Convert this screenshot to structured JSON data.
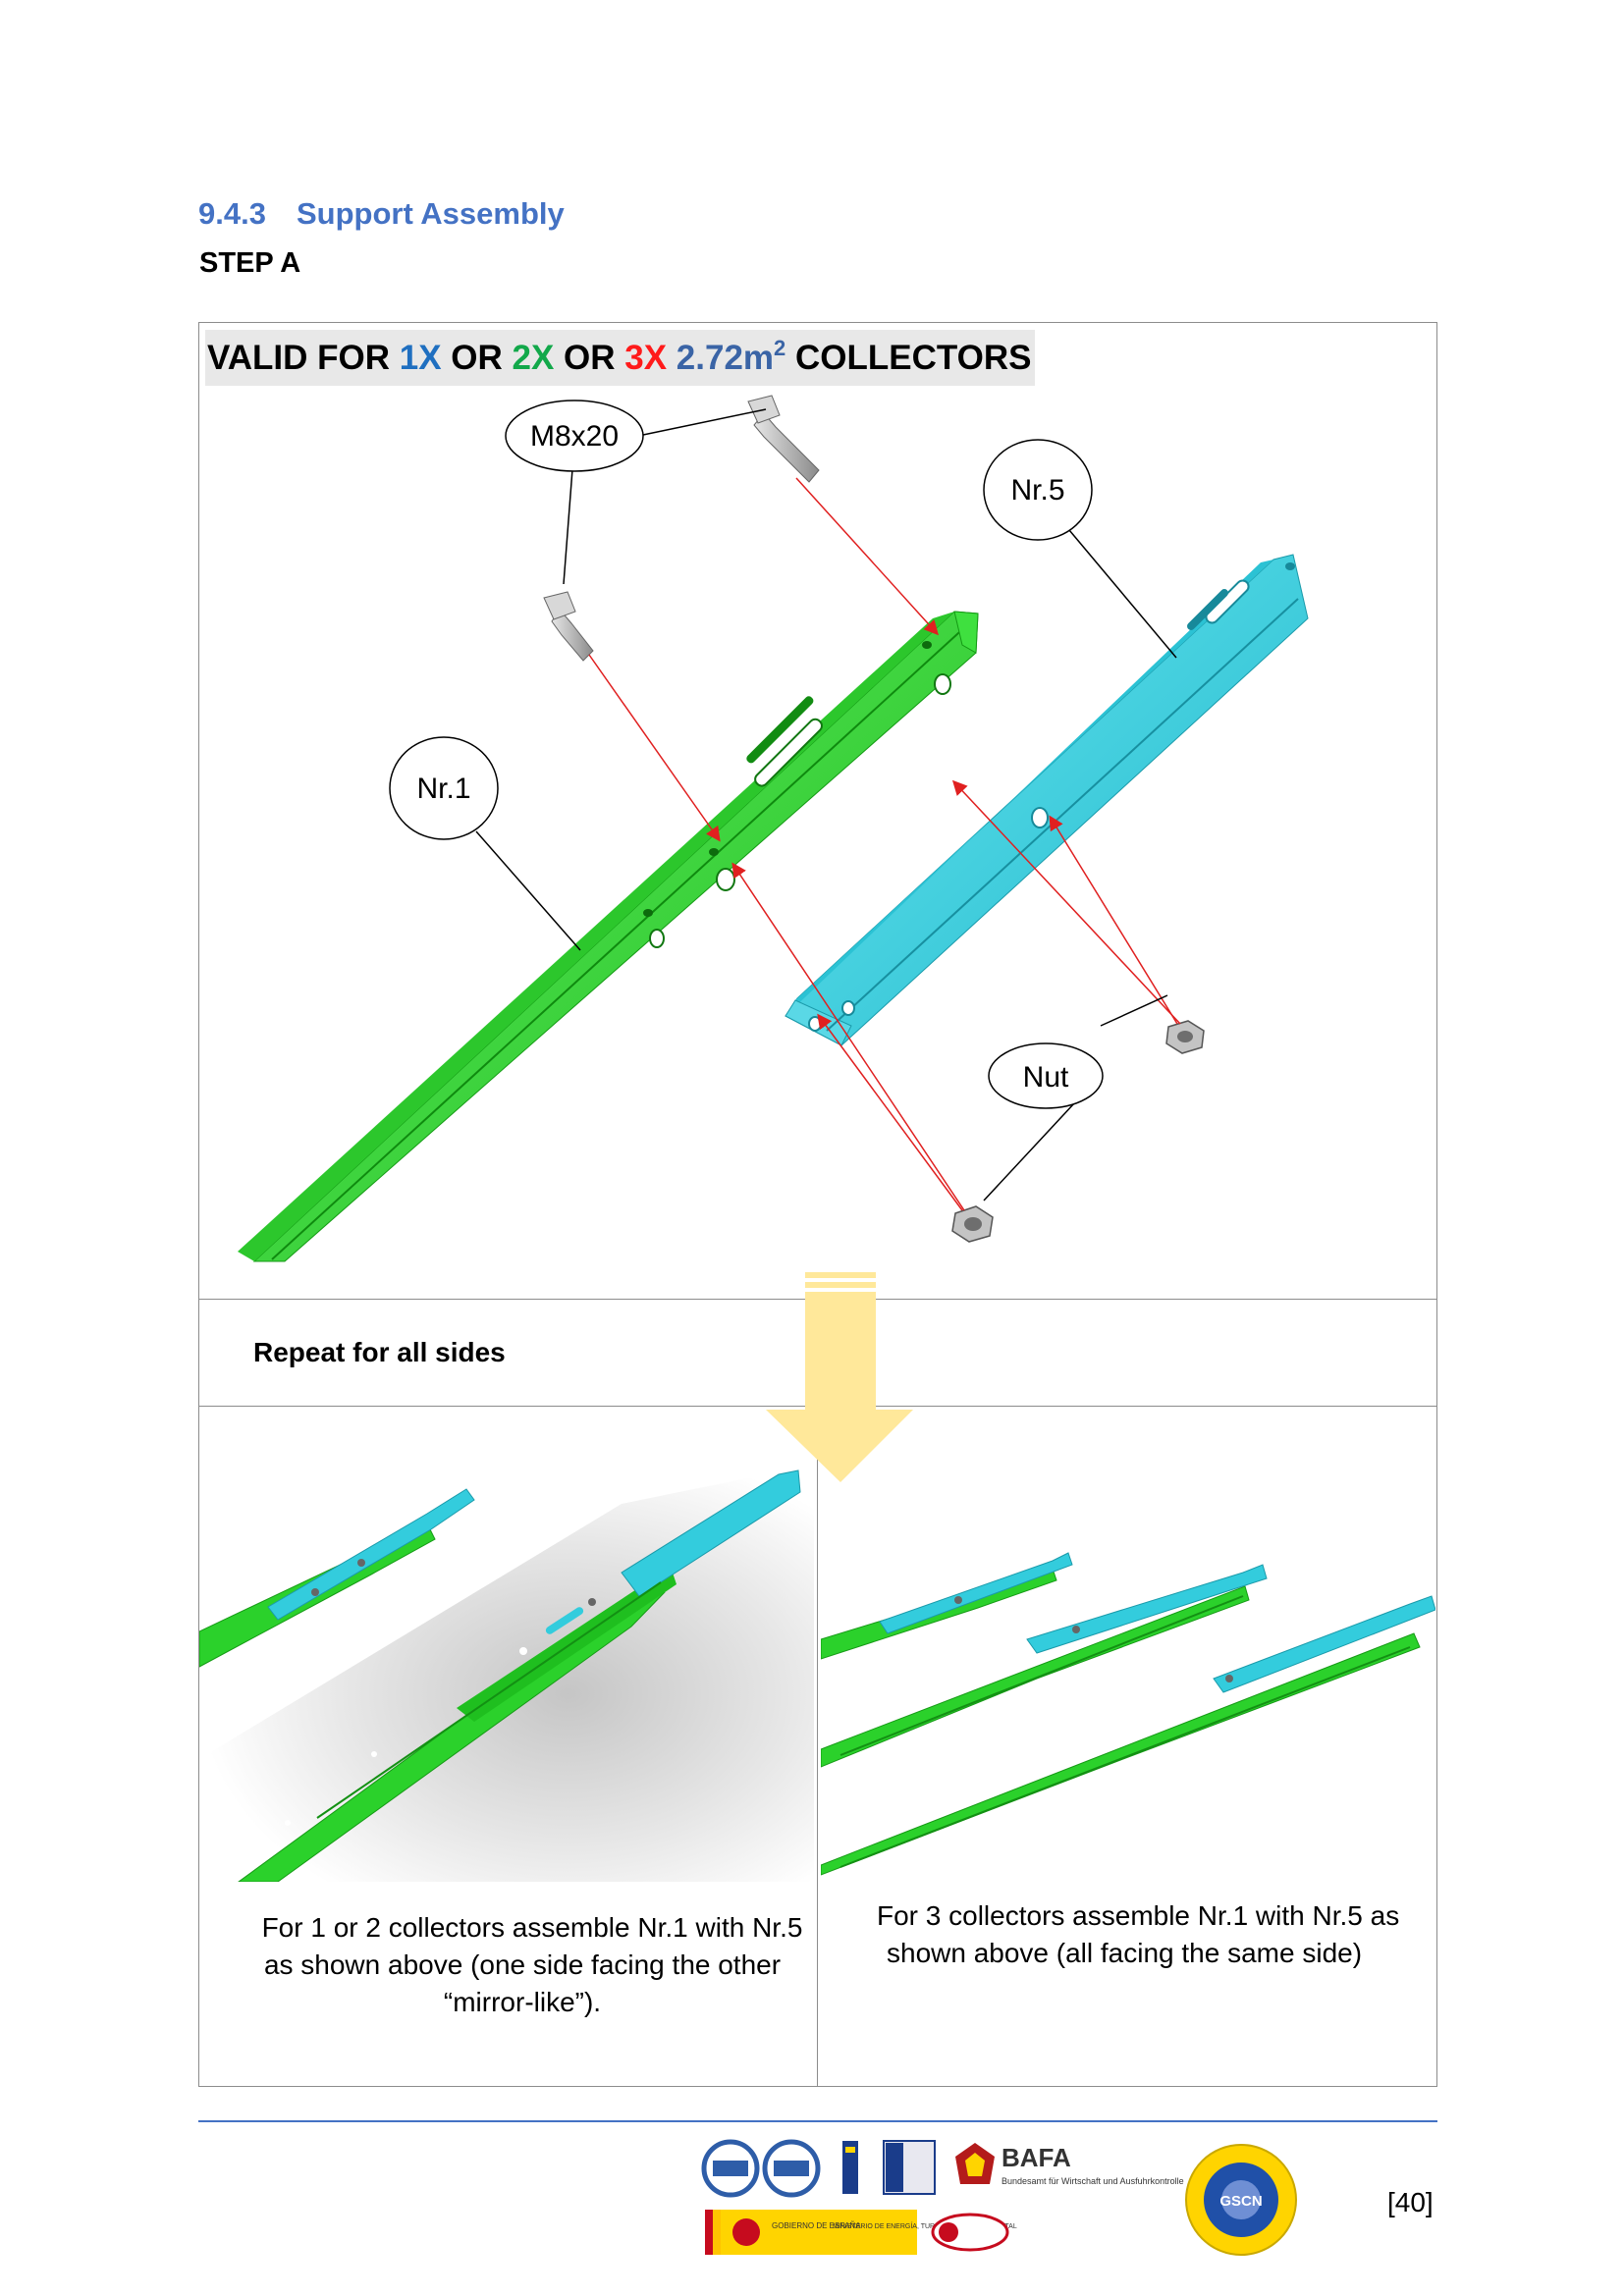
{
  "header": {
    "section_number": "9.4.3",
    "section_title": "Support Assembly",
    "step": "STEP A"
  },
  "banner": {
    "prefix": "VALID FOR ",
    "opt1": "1X",
    "or1": " OR ",
    "opt2": "2X",
    "or2": " OR ",
    "opt3": "3X",
    "area": " 2.72m",
    "area_sup": "2",
    "suffix": " COLLECTORS",
    "colors": {
      "opt1": "#1f6fc0",
      "opt2": "#12a84a",
      "opt3": "#ff1a1a",
      "area": "#3a64a6"
    }
  },
  "diagram": {
    "labels": {
      "bolt": "M8x20",
      "part5": "Nr.5",
      "part1": "Nr.1",
      "nut": "Nut"
    },
    "part_colors": {
      "nr1": "#2ed12e",
      "nr5": "#33ccdd",
      "arrow": "#e02020"
    }
  },
  "repeat_label": "Repeat for all sides",
  "captions": {
    "left": [
      "For 1 or 2 collectors assemble Nr.1 with Nr.5",
      "as shown above (one side facing the other",
      "“mirror-like”)."
    ],
    "right": [
      "For 3 collectors assemble Nr.1 with Nr.5 as",
      "shown above (all facing the same side)"
    ]
  },
  "footer": {
    "page_number": "[40]",
    "logo_text": {
      "bafa": "BAFA",
      "bafa_sub": "Bundesamt für Wirtschaft und Ausfuhrkontrolle",
      "gscn": "GSCN",
      "gobierno": "GOBIERNO DE ESPAÑA",
      "ministerio": "MINISTERIO DE ENERGÍA, TURISMO Y AGENDA DIGITAL"
    }
  }
}
